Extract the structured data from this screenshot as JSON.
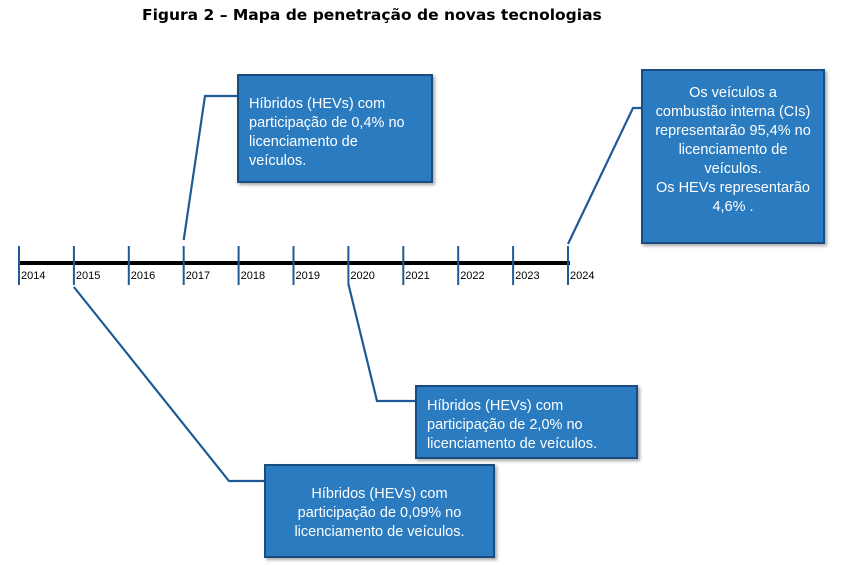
{
  "figure_title": "Figura 2 – Mapa de penetração de novas tecnologias",
  "timeline": {
    "years": [
      "2014",
      "2015",
      "2016",
      "2017",
      "2018",
      "2019",
      "2020",
      "2021",
      "2022",
      "2023",
      "2024"
    ]
  },
  "callouts": {
    "y2017": {
      "year": "2017",
      "lines": [
        "Híbridos (HEVs) com",
        "participação de 0,4% no",
        "licenciamento de",
        "veículos."
      ]
    },
    "y2024": {
      "year": "2024",
      "lines": [
        "Os veículos a",
        "combustão interna (CIs)",
        "representarão 95,4% no",
        "licenciamento de",
        "veículos.",
        "Os HEVs representarão",
        "4,6% ."
      ]
    },
    "y2020": {
      "year": "2020",
      "lines": [
        "Híbridos (HEVs) com",
        "participação de 2,0% no",
        "licenciamento de veículos."
      ]
    },
    "y2015": {
      "year": "2015",
      "lines": [
        "Híbridos (HEVs) com",
        "participação de 0,09% no",
        "licenciamento de veículos."
      ]
    }
  },
  "colors": {
    "box_fill": "#2a7bc0",
    "box_border": "#1a4c80",
    "connector": "#1f5a96",
    "axis": "#000000",
    "tick": "#1f5a96"
  }
}
